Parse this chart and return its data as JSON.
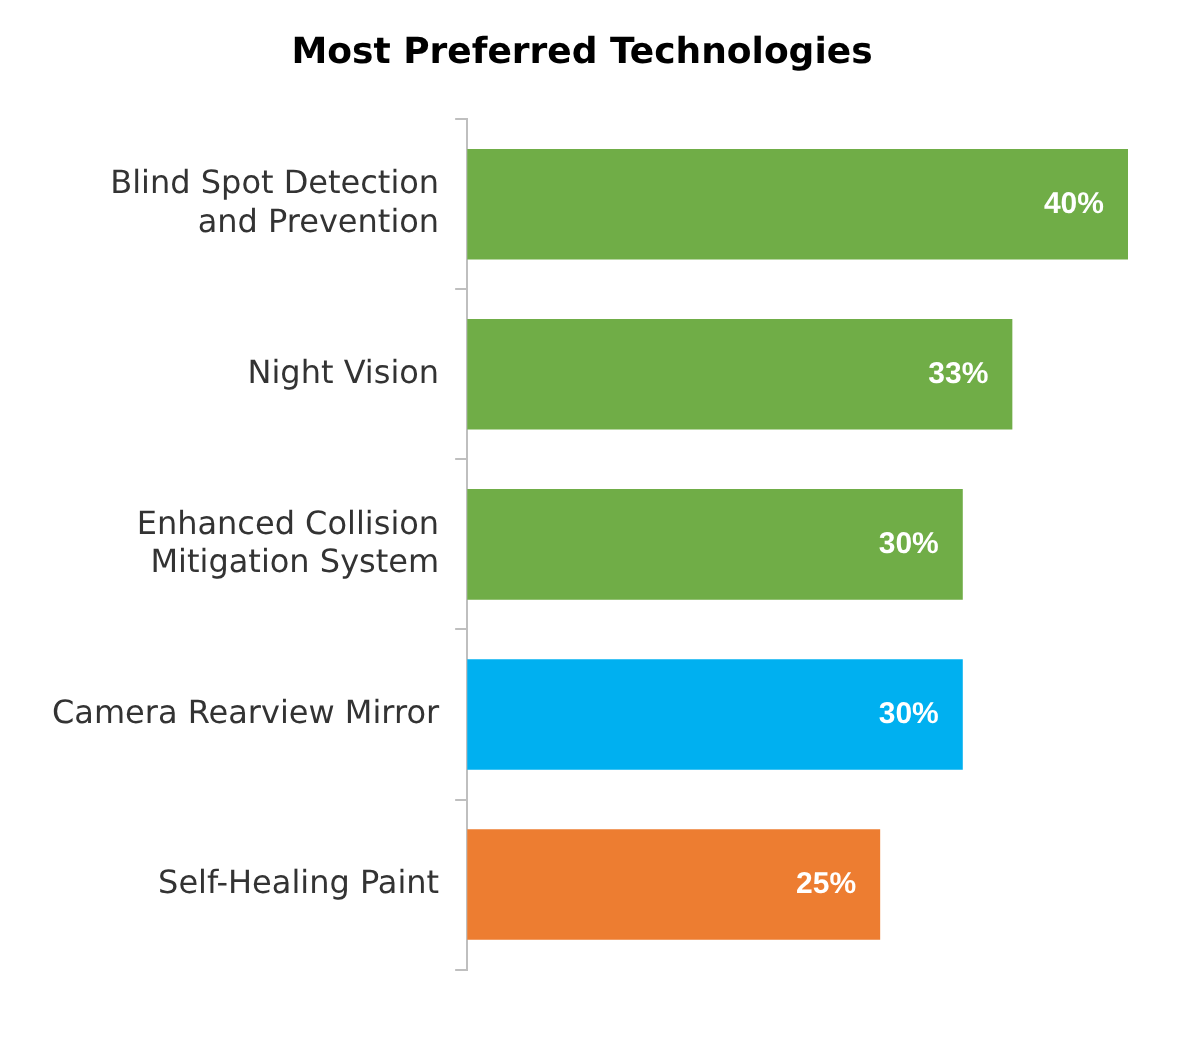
{
  "chart_data": {
    "type": "bar",
    "orientation": "horizontal",
    "title": "Most Preferred Technologies",
    "categories": [
      "Blind Spot Detection and Prevention",
      "Night Vision",
      "Enhanced Collision Mitigation System",
      "Camera Rearview Mirror",
      "Self-Healing Paint"
    ],
    "values": [
      40,
      33,
      30,
      30,
      25
    ],
    "colors": [
      "#70ad47",
      "#70ad47",
      "#70ad47",
      "#00b0f0",
      "#ed7d31"
    ],
    "value_labels": [
      "40%",
      "33%",
      "30%",
      "30%",
      "25%"
    ],
    "legend": false
  }
}
